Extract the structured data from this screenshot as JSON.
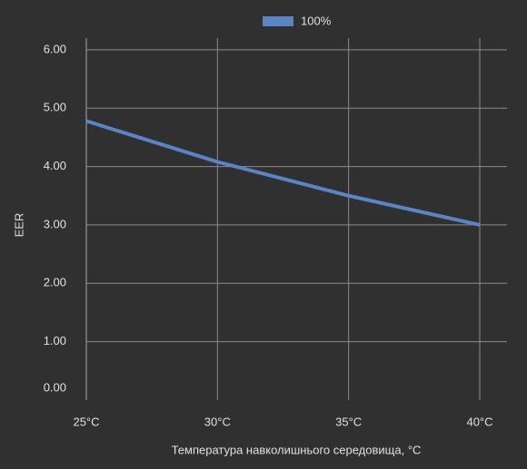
{
  "chart_data": {
    "type": "line",
    "x_label": "Температура навколишнього середовища, °C",
    "y_label": "EER",
    "categories": [
      "25°C",
      "30°C",
      "35°C",
      "40°C"
    ],
    "series": [
      {
        "name": "100%",
        "color": "#5b84c4",
        "values": [
          4.78,
          4.08,
          3.5,
          3.0
        ]
      }
    ],
    "ylim": [
      0,
      6.2
    ],
    "yticks": [
      {
        "value": 0,
        "label": "0.00"
      },
      {
        "value": 1,
        "label": "1.00"
      },
      {
        "value": 2,
        "label": "2.00"
      },
      {
        "value": 3,
        "label": "3.00"
      },
      {
        "value": 4,
        "label": "4.00"
      },
      {
        "value": 5,
        "label": "5.00"
      },
      {
        "value": 6,
        "label": "6.00"
      }
    ],
    "grid": true,
    "legend": "top"
  }
}
